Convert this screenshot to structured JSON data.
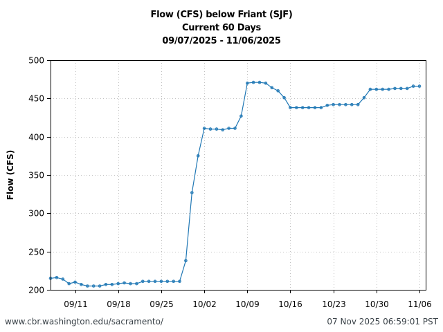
{
  "header": {
    "title": "Flow (CFS) below Friant (SJF)",
    "subtitle": "Current 60 Days",
    "date_range": "09/07/2025 - 11/06/2025"
  },
  "footer": {
    "source_url": "www.cbr.washington.edu/sacramento/",
    "timestamp": "07 Nov 2025 06:59:01 PST"
  },
  "colors": {
    "series": "#1f77b4",
    "axis": "#000000",
    "grid": "#b0b0b0"
  },
  "chart_data": {
    "type": "line",
    "title": "Flow (CFS) below Friant (SJF)\nCurrent 60 Days\n09/07/2025 - 11/06/2025",
    "xlabel": "",
    "ylabel": "Flow (CFS)",
    "ylim": [
      200,
      500
    ],
    "yticks": [
      200,
      250,
      300,
      350,
      400,
      450,
      500
    ],
    "xticks": [
      "09/11",
      "09/18",
      "09/25",
      "10/02",
      "10/09",
      "10/16",
      "10/23",
      "10/30",
      "11/06"
    ],
    "xtick_day_index": [
      4,
      11,
      18,
      25,
      32,
      39,
      46,
      53,
      60
    ],
    "grid": true,
    "legend": null,
    "x": [
      "09/07",
      "09/08",
      "09/09",
      "09/10",
      "09/11",
      "09/12",
      "09/13",
      "09/14",
      "09/15",
      "09/16",
      "09/17",
      "09/18",
      "09/19",
      "09/20",
      "09/21",
      "09/22",
      "09/23",
      "09/24",
      "09/25",
      "09/26",
      "09/27",
      "09/28",
      "09/29",
      "09/30",
      "10/01",
      "10/02",
      "10/03",
      "10/04",
      "10/05",
      "10/06",
      "10/07",
      "10/08",
      "10/09",
      "10/10",
      "10/11",
      "10/12",
      "10/13",
      "10/14",
      "10/15",
      "10/16",
      "10/17",
      "10/18",
      "10/19",
      "10/20",
      "10/21",
      "10/22",
      "10/23",
      "10/24",
      "10/25",
      "10/26",
      "10/27",
      "10/28",
      "10/29",
      "10/30",
      "10/31",
      "11/01",
      "11/02",
      "11/03",
      "11/04",
      "11/05",
      "11/06"
    ],
    "series": [
      {
        "name": "Flow (CFS)",
        "values": [
          215,
          216,
          214,
          208,
          210,
          207,
          205,
          205,
          205,
          207,
          207,
          208,
          209,
          208,
          208,
          211,
          211,
          211,
          211,
          211,
          211,
          211,
          238,
          327,
          375,
          411,
          410,
          410,
          409,
          411,
          411,
          427,
          470,
          471,
          471,
          470,
          464,
          460,
          451,
          438,
          438,
          438,
          438,
          438,
          438,
          441,
          442,
          442,
          442,
          442,
          442,
          451,
          462,
          462,
          462,
          462,
          463,
          463,
          463,
          466,
          466
        ]
      }
    ]
  }
}
